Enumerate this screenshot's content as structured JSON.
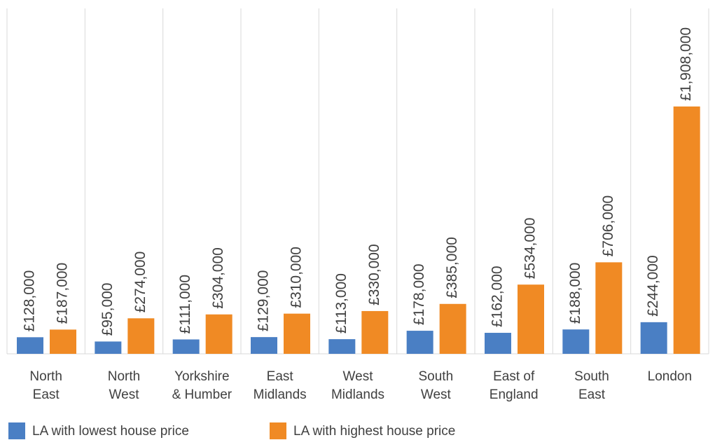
{
  "chart_data": {
    "type": "bar",
    "categories": [
      [
        "North",
        "East"
      ],
      [
        "North",
        "West"
      ],
      [
        "Yorkshire",
        "& Humber"
      ],
      [
        "East",
        "Midlands"
      ],
      [
        "West",
        "Midlands"
      ],
      [
        "South",
        "West"
      ],
      [
        "East of",
        "England"
      ],
      [
        "South",
        "East"
      ],
      [
        "London"
      ]
    ],
    "series": [
      {
        "name": "LA with lowest house price",
        "color": "#4a7fc4",
        "values": [
          128000,
          95000,
          111000,
          129000,
          113000,
          178000,
          162000,
          188000,
          244000
        ],
        "value_labels": [
          "£128,000",
          "£95,000",
          "£111,000",
          "£129,000",
          "£113,000",
          "£178,000",
          "£162,000",
          "£188,000",
          "£244,000"
        ]
      },
      {
        "name": "LA with highest house price",
        "color": "#f08a24",
        "values": [
          187000,
          274000,
          304000,
          310000,
          330000,
          385000,
          534000,
          706000,
          1908000
        ],
        "value_labels": [
          "£187,000",
          "£274,000",
          "£304,000",
          "£310,000",
          "£330,000",
          "£385,000",
          "£534,000",
          "£706,000",
          "£1,908,000"
        ]
      }
    ],
    "grid": true
  }
}
